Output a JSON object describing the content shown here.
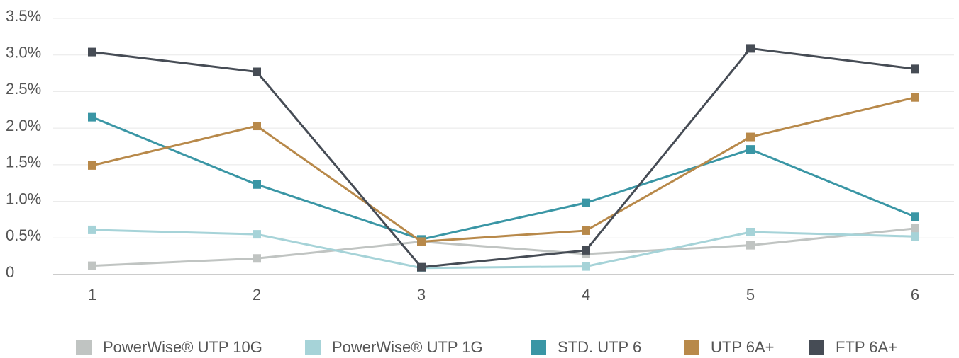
{
  "chart_data": {
    "type": "line",
    "categories": [
      "1",
      "2",
      "3",
      "4",
      "5",
      "6"
    ],
    "ylim": [
      0,
      3.5
    ],
    "yticks": [
      0,
      {
        "value": 0.5,
        "label": "0.5%"
      },
      {
        "value": 1.0,
        "label": "1.0%"
      },
      {
        "value": 1.5,
        "label": "1.5%"
      },
      {
        "value": 2.0,
        "label": "2.0%"
      },
      {
        "value": 2.5,
        "label": "2.5%"
      },
      {
        "value": 3.0,
        "label": "3.0%"
      },
      {
        "value": 3.5,
        "label": "3.5%"
      }
    ],
    "grid": true,
    "legend": "bottom",
    "series": [
      {
        "name": "PowerWise® UTP 10G",
        "color": "#c0c4c2",
        "values": [
          0.12,
          0.22,
          0.45,
          0.28,
          0.4,
          0.63
        ]
      },
      {
        "name": "PowerWise® UTP 1G",
        "color": "#a6d3d8",
        "values": [
          0.61,
          0.55,
          0.09,
          0.11,
          0.58,
          0.52
        ]
      },
      {
        "name": "STD. UTP 6",
        "color": "#3a96a5",
        "values": [
          2.15,
          1.23,
          0.48,
          0.98,
          1.71,
          0.79
        ]
      },
      {
        "name": "UTP 6A+",
        "color": "#b8894a",
        "values": [
          1.49,
          2.03,
          0.45,
          0.6,
          1.88,
          2.42
        ]
      },
      {
        "name": "FTP 6A+",
        "color": "#464c55",
        "values": [
          3.04,
          2.77,
          0.1,
          0.33,
          3.09,
          2.81
        ]
      }
    ]
  }
}
